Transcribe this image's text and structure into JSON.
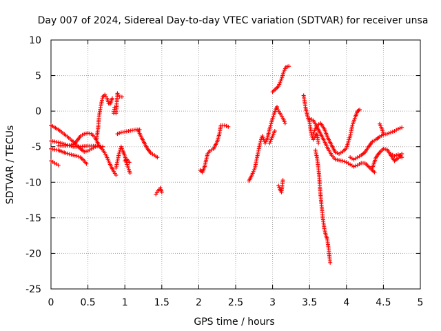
{
  "chart_data": {
    "type": "scatter",
    "title": "Day 007 of 2024, Sidereal Day-to-day VTEC variation (SDTVAR) for receiver unsa",
    "xlabel": "GPS time / hours",
    "ylabel": "SDTVAR / TECUs",
    "xlim": [
      0,
      5
    ],
    "ylim": [
      -25,
      10
    ],
    "grid": true,
    "marker": "+",
    "marker_color": "#ff0000",
    "xticks": [
      "0",
      "0.5",
      "1",
      "1.5",
      "2",
      "2.5",
      "3",
      "3.5",
      "4",
      "4.5",
      "5"
    ],
    "yticks": [
      "10",
      "5",
      "0",
      "-5",
      "-10",
      "-15",
      "-20",
      "-25"
    ],
    "tracks": [
      {
        "points": [
          [
            0,
            -2
          ],
          [
            0.1,
            -2.6
          ],
          [
            0.2,
            -3.4
          ],
          [
            0.28,
            -4.1
          ],
          [
            0.35,
            -4.8
          ],
          [
            0.4,
            -5.3
          ],
          [
            0.45,
            -5.7
          ],
          [
            0.5,
            -5.6
          ],
          [
            0.55,
            -5.3
          ],
          [
            0.6,
            -5
          ],
          [
            0.65,
            -4.9
          ],
          [
            0.7,
            -5.4
          ],
          [
            0.75,
            -6.3
          ],
          [
            0.8,
            -7.5
          ],
          [
            0.85,
            -8.5
          ],
          [
            0.88,
            -9
          ]
        ]
      },
      {
        "points": [
          [
            0,
            -4.2
          ],
          [
            0.1,
            -4.4
          ],
          [
            0.2,
            -4.7
          ],
          [
            0.3,
            -5
          ],
          [
            0.4,
            -5
          ],
          [
            0.5,
            -4.9
          ],
          [
            0.6,
            -4.9
          ],
          [
            0.7,
            -5
          ]
        ]
      },
      {
        "points": [
          [
            0,
            -5.3
          ],
          [
            0.1,
            -5.5
          ],
          [
            0.2,
            -5.9
          ],
          [
            0.3,
            -6.2
          ],
          [
            0.35,
            -6.3
          ],
          [
            0.4,
            -6.5
          ],
          [
            0.45,
            -7
          ],
          [
            0.48,
            -7.4
          ]
        ]
      },
      {
        "points": [
          [
            0,
            -7
          ],
          [
            0.05,
            -7.3
          ],
          [
            0.1,
            -7.6
          ]
        ]
      },
      {
        "points": [
          [
            0.1,
            -4.8
          ],
          [
            0.2,
            -4.9
          ],
          [
            0.3,
            -4.7
          ],
          [
            0.35,
            -4.2
          ],
          [
            0.4,
            -3.5
          ],
          [
            0.45,
            -3.2
          ],
          [
            0.5,
            -3.1
          ],
          [
            0.55,
            -3.2
          ],
          [
            0.6,
            -3.8
          ],
          [
            0.65,
            -4.8
          ]
        ]
      },
      {
        "points": [
          [
            0.62,
            -3.8
          ],
          [
            0.64,
            -2.2
          ],
          [
            0.65,
            -0.8
          ],
          [
            0.67,
            0.5
          ],
          [
            0.7,
            2
          ],
          [
            0.73,
            2.3
          ],
          [
            0.76,
            1.8
          ],
          [
            0.78,
            1.1
          ],
          [
            0.8,
            1
          ],
          [
            0.83,
            1.8
          ]
        ]
      },
      {
        "points": [
          [
            0.88,
            -0.3
          ],
          [
            0.9,
            2.5
          ],
          [
            0.93,
            2
          ],
          [
            0.96,
            2
          ]
        ]
      },
      {
        "points": [
          [
            0.85,
            -0.3
          ],
          [
            0.86,
            0.5
          ]
        ]
      },
      {
        "points": [
          [
            0.88,
            -8
          ],
          [
            0.9,
            -7
          ],
          [
            0.92,
            -6
          ],
          [
            0.95,
            -5
          ],
          [
            0.97,
            -5.5
          ],
          [
            1,
            -6.3
          ],
          [
            1.03,
            -7.5
          ],
          [
            1.07,
            -8.7
          ]
        ]
      },
      {
        "points": [
          [
            1,
            -7
          ],
          [
            1.03,
            -6.8
          ],
          [
            1.06,
            -7.2
          ]
        ]
      },
      {
        "points": [
          [
            0.9,
            -3.2
          ],
          [
            0.95,
            -3
          ],
          [
            1,
            -2.9
          ],
          [
            1.05,
            -2.8
          ],
          [
            1.1,
            -2.7
          ],
          [
            1.15,
            -2.6
          ],
          [
            1.2,
            -2.6
          ]
        ]
      },
      {
        "points": [
          [
            1.18,
            -2.7
          ],
          [
            1.22,
            -3.6
          ],
          [
            1.26,
            -4.4
          ],
          [
            1.3,
            -5.2
          ],
          [
            1.35,
            -5.9
          ],
          [
            1.4,
            -6.2
          ],
          [
            1.44,
            -6.5
          ]
        ]
      },
      {
        "points": [
          [
            1.42,
            -11.7
          ],
          [
            1.45,
            -11.2
          ],
          [
            1.48,
            -10.8
          ],
          [
            1.5,
            -11.4
          ]
        ]
      },
      {
        "points": [
          [
            2.02,
            -8.3
          ],
          [
            2.05,
            -8.6
          ],
          [
            2.08,
            -7.8
          ],
          [
            2.12,
            -6
          ],
          [
            2.15,
            -5.6
          ],
          [
            2.2,
            -5.3
          ],
          [
            2.25,
            -4.3
          ],
          [
            2.28,
            -3.2
          ],
          [
            2.3,
            -2
          ],
          [
            2.35,
            -2
          ],
          [
            2.4,
            -2.2
          ]
        ]
      },
      {
        "points": [
          [
            2.68,
            -9.8
          ],
          [
            2.72,
            -9
          ],
          [
            2.76,
            -8
          ],
          [
            2.8,
            -6
          ],
          [
            2.83,
            -4.5
          ],
          [
            2.86,
            -3.5
          ],
          [
            2.9,
            -4.5
          ],
          [
            2.93,
            -3.8
          ],
          [
            2.96,
            -2.5
          ],
          [
            3,
            -1
          ],
          [
            3.04,
            0.2
          ],
          [
            3.06,
            0.6
          ]
        ]
      },
      {
        "points": [
          [
            2.96,
            -4.5
          ],
          [
            3,
            -3.5
          ],
          [
            3.03,
            -2.8
          ]
        ]
      },
      {
        "points": [
          [
            3.06,
            0.4
          ],
          [
            3.1,
            -0.3
          ],
          [
            3.14,
            -1
          ],
          [
            3.17,
            -1.7
          ]
        ]
      },
      {
        "points": [
          [
            3,
            2.7
          ],
          [
            3.05,
            3.2
          ],
          [
            3.08,
            3.5
          ],
          [
            3.12,
            4.5
          ],
          [
            3.15,
            5.5
          ],
          [
            3.18,
            6.2
          ],
          [
            3.22,
            6.3
          ]
        ]
      },
      {
        "points": [
          [
            3.08,
            -10.5
          ],
          [
            3.1,
            -11
          ],
          [
            3.12,
            -11.4
          ],
          [
            3.14,
            -9.7
          ]
        ]
      },
      {
        "points": [
          [
            3.42,
            2.2
          ],
          [
            3.45,
            0.3
          ],
          [
            3.48,
            -1
          ],
          [
            3.5,
            -1.5
          ],
          [
            3.52,
            -3
          ],
          [
            3.55,
            -4
          ],
          [
            3.58,
            -3.5
          ],
          [
            3.6,
            -3.2
          ],
          [
            3.62,
            -4.5
          ]
        ]
      },
      {
        "points": [
          [
            3.58,
            -5.5
          ],
          [
            3.6,
            -6.5
          ],
          [
            3.62,
            -8
          ],
          [
            3.63,
            -9
          ],
          [
            3.64,
            -10.7
          ],
          [
            3.66,
            -13
          ],
          [
            3.68,
            -15
          ],
          [
            3.7,
            -16.5
          ],
          [
            3.72,
            -17.4
          ],
          [
            3.74,
            -18
          ],
          [
            3.76,
            -19.5
          ],
          [
            3.78,
            -21.3
          ]
        ]
      },
      {
        "points": [
          [
            3.55,
            -3.2
          ],
          [
            3.6,
            -2
          ],
          [
            3.65,
            -1.7
          ],
          [
            3.7,
            -2.5
          ],
          [
            3.75,
            -3.8
          ],
          [
            3.8,
            -4.8
          ],
          [
            3.85,
            -5.8
          ],
          [
            3.9,
            -6
          ],
          [
            3.95,
            -5.7
          ],
          [
            4,
            -5.2
          ],
          [
            4.05,
            -3.5
          ],
          [
            4.08,
            -2
          ],
          [
            4.12,
            -0.8
          ],
          [
            4.15,
            0
          ],
          [
            4.18,
            0.2
          ]
        ]
      },
      {
        "points": [
          [
            3.5,
            -1
          ],
          [
            3.55,
            -1.3
          ],
          [
            3.6,
            -2.2
          ],
          [
            3.65,
            -3.2
          ],
          [
            3.7,
            -4.2
          ],
          [
            3.75,
            -5.3
          ],
          [
            3.8,
            -6.2
          ],
          [
            3.85,
            -6.8
          ],
          [
            3.9,
            -6.9
          ],
          [
            3.95,
            -7
          ],
          [
            4,
            -7.2
          ],
          [
            4.05,
            -7.5
          ],
          [
            4.1,
            -7.8
          ],
          [
            4.15,
            -7.6
          ],
          [
            4.2,
            -7.3
          ],
          [
            4.25,
            -7.3
          ],
          [
            4.3,
            -7.8
          ],
          [
            4.35,
            -8.3
          ],
          [
            4.38,
            -8.6
          ]
        ]
      },
      {
        "points": [
          [
            4.05,
            -6.5
          ],
          [
            4.1,
            -6.8
          ],
          [
            4.15,
            -6.5
          ],
          [
            4.2,
            -6.2
          ],
          [
            4.25,
            -5.8
          ],
          [
            4.3,
            -5
          ],
          [
            4.35,
            -4.3
          ],
          [
            4.4,
            -4
          ],
          [
            4.45,
            -3.6
          ],
          [
            4.5,
            -3.3
          ],
          [
            4.55,
            -3.2
          ],
          [
            4.6,
            -3
          ],
          [
            4.65,
            -2.8
          ],
          [
            4.7,
            -2.5
          ],
          [
            4.75,
            -2.3
          ]
        ]
      },
      {
        "points": [
          [
            4.35,
            -8
          ],
          [
            4.4,
            -6.5
          ],
          [
            4.45,
            -5.8
          ],
          [
            4.5,
            -5.3
          ],
          [
            4.55,
            -5.4
          ],
          [
            4.6,
            -6.2
          ],
          [
            4.65,
            -7
          ],
          [
            4.7,
            -6.6
          ],
          [
            4.75,
            -6
          ]
        ]
      },
      {
        "points": [
          [
            4.45,
            -1.8
          ],
          [
            4.48,
            -2.5
          ],
          [
            4.5,
            -3.2
          ]
        ]
      },
      {
        "points": [
          [
            4.6,
            -6
          ],
          [
            4.65,
            -6.3
          ],
          [
            4.7,
            -6.1
          ],
          [
            4.75,
            -6.5
          ]
        ]
      }
    ]
  }
}
